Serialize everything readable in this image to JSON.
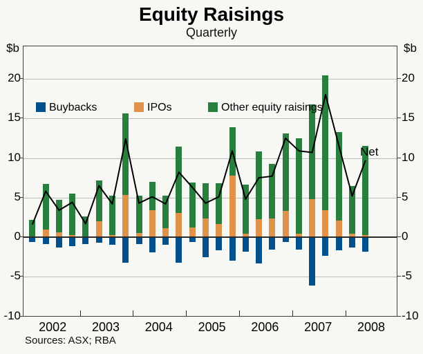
{
  "title": "Equity Raisings",
  "subtitle": "Quarterly",
  "source_note": "Sources: ASX; RBA",
  "axis_unit_left": "$b",
  "axis_unit_right": "$b",
  "net_label": "Net",
  "legend": {
    "buybacks": "Buybacks",
    "ipos": "IPOs",
    "other": "Other equity raisings"
  },
  "chart_data": {
    "type": "bar",
    "subtype": "stacked-bar-with-line",
    "title": "Equity Raisings",
    "subtitle": "Quarterly",
    "xlabel": "",
    "ylabel": "$b",
    "ylim": [
      -10,
      24.1
    ],
    "yticks": [
      20,
      15,
      10,
      5,
      0,
      -5,
      -10
    ],
    "grid": true,
    "legend_position": "top-inside",
    "x_tick_labels": [
      "2002",
      "2003",
      "2004",
      "2005",
      "2006",
      "2007",
      "2008"
    ],
    "categories": [
      "2002Q1",
      "2002Q2",
      "2002Q3",
      "2002Q4",
      "2003Q1",
      "2003Q2",
      "2003Q3",
      "2003Q4",
      "2004Q1",
      "2004Q2",
      "2004Q3",
      "2004Q4",
      "2005Q1",
      "2005Q2",
      "2005Q3",
      "2005Q4",
      "2006Q1",
      "2006Q2",
      "2006Q3",
      "2006Q4",
      "2007Q1",
      "2007Q2",
      "2007Q3",
      "2007Q4",
      "2008Q1",
      "2008Q2"
    ],
    "series": [
      {
        "name": "Buybacks",
        "type": "bar",
        "color": "#01508e",
        "values": [
          -0.6,
          -0.9,
          -1.3,
          -1.1,
          -0.9,
          -0.7,
          -1.0,
          -3.2,
          -0.9,
          -1.9,
          -1.0,
          -3.2,
          -0.6,
          -2.5,
          -1.7,
          -3.0,
          -1.8,
          -3.3,
          -1.6,
          -0.6,
          -1.6,
          -6.1,
          -2.4,
          -1.7,
          -1.3,
          -1.8
        ]
      },
      {
        "name": "IPOs",
        "type": "bar",
        "color": "#e0914a",
        "values": [
          0.0,
          1.0,
          0.6,
          0.3,
          0.0,
          2.0,
          0.3,
          5.3,
          0.5,
          3.4,
          1.1,
          3.1,
          1.2,
          2.4,
          1.7,
          7.8,
          0.4,
          2.3,
          2.4,
          3.3,
          0.4,
          4.8,
          3.4,
          2.1,
          0.4,
          0.3
        ]
      },
      {
        "name": "Other equity raisings",
        "type": "bar",
        "color": "#2a7e3e",
        "values": [
          2.2,
          5.7,
          4.1,
          5.2,
          2.6,
          5.2,
          4.9,
          10.3,
          4.7,
          3.6,
          4.1,
          8.3,
          5.7,
          4.4,
          5.1,
          6.1,
          6.2,
          8.5,
          6.9,
          9.8,
          12.1,
          12.0,
          17.0,
          11.2,
          6.1,
          11.2
        ]
      },
      {
        "name": "Net",
        "type": "line",
        "color": "#000000",
        "values": [
          1.6,
          5.8,
          3.4,
          4.4,
          1.7,
          6.5,
          4.2,
          12.4,
          4.3,
          5.1,
          4.2,
          8.2,
          6.3,
          4.3,
          5.1,
          10.9,
          4.8,
          7.5,
          7.7,
          12.5,
          10.9,
          10.7,
          18.0,
          11.6,
          5.2,
          9.7
        ]
      }
    ]
  }
}
